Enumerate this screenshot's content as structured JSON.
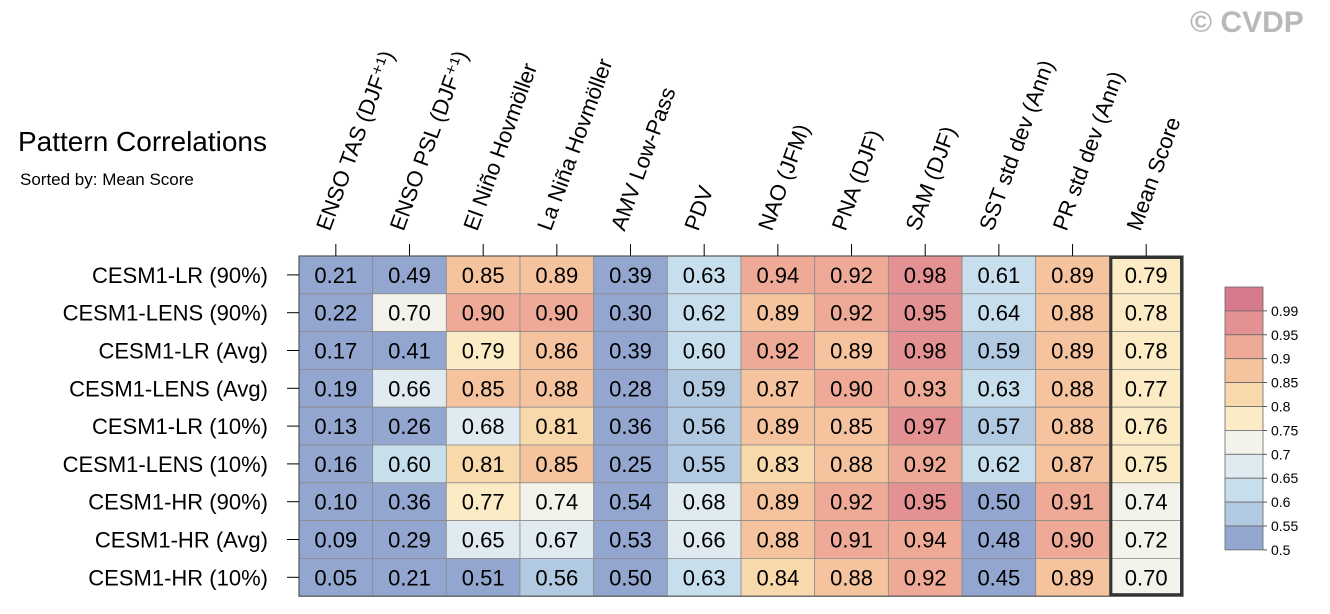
{
  "watermark": "© CVDP",
  "chart_data": {
    "type": "heatmap",
    "title": "Pattern Correlations",
    "subtitle": "Sorted by: Mean Score",
    "columns": [
      "ENSO TAS (DJF⁺¹)",
      "ENSO PSL (DJF⁺¹)",
      "El Niño Hovmöller",
      "La Niña Hovmöller",
      "AMV Low-Pass",
      "PDV",
      "NAO (JFM)",
      "PNA (DJF)",
      "SAM (DJF)",
      "SST std dev (Ann)",
      "PR std dev (Ann)",
      "Mean Score"
    ],
    "rows": [
      "CESM1-LR (90%)",
      "CESM1-LENS (90%)",
      "CESM1-LR (Avg)",
      "CESM1-LENS (Avg)",
      "CESM1-LR (10%)",
      "CESM1-LENS (10%)",
      "CESM1-HR (90%)",
      "CESM1-HR (Avg)",
      "CESM1-HR (10%)"
    ],
    "values": [
      [
        "0.21",
        "0.49",
        "0.85",
        "0.89",
        "0.39",
        "0.63",
        "0.94",
        "0.92",
        "0.98",
        "0.61",
        "0.89",
        "0.79"
      ],
      [
        "0.22",
        "0.70",
        "0.90",
        "0.90",
        "0.30",
        "0.62",
        "0.89",
        "0.92",
        "0.95",
        "0.64",
        "0.88",
        "0.78"
      ],
      [
        "0.17",
        "0.41",
        "0.79",
        "0.86",
        "0.39",
        "0.60",
        "0.92",
        "0.89",
        "0.98",
        "0.59",
        "0.89",
        "0.78"
      ],
      [
        "0.19",
        "0.66",
        "0.85",
        "0.88",
        "0.28",
        "0.59",
        "0.87",
        "0.90",
        "0.93",
        "0.63",
        "0.88",
        "0.77"
      ],
      [
        "0.13",
        "0.26",
        "0.68",
        "0.81",
        "0.36",
        "0.56",
        "0.89",
        "0.85",
        "0.97",
        "0.57",
        "0.88",
        "0.76"
      ],
      [
        "0.16",
        "0.60",
        "0.81",
        "0.85",
        "0.25",
        "0.55",
        "0.83",
        "0.88",
        "0.92",
        "0.62",
        "0.87",
        "0.75"
      ],
      [
        "0.10",
        "0.36",
        "0.77",
        "0.74",
        "0.54",
        "0.68",
        "0.89",
        "0.92",
        "0.95",
        "0.50",
        "0.91",
        "0.74"
      ],
      [
        "0.09",
        "0.29",
        "0.65",
        "0.67",
        "0.53",
        "0.66",
        "0.88",
        "0.91",
        "0.94",
        "0.48",
        "0.90",
        "0.72"
      ],
      [
        "0.05",
        "0.21",
        "0.51",
        "0.56",
        "0.50",
        "0.63",
        "0.84",
        "0.88",
        "0.92",
        "0.45",
        "0.89",
        "0.70"
      ]
    ],
    "highlighted_column": "Mean Score",
    "colorbar": {
      "levels": [
        "0.99",
        "0.95",
        "0.9",
        "0.85",
        "0.8",
        "0.75",
        "0.7",
        "0.65",
        "0.6",
        "0.55",
        "0.5"
      ],
      "colors": [
        "#d67a8d",
        "#e49193",
        "#eeaa97",
        "#f5c39e",
        "#f8d9ac",
        "#fbecc5",
        "#f3f3ec",
        "#e0ebf1",
        "#c7deec",
        "#b1c9e1",
        "#93a6cf"
      ]
    }
  }
}
